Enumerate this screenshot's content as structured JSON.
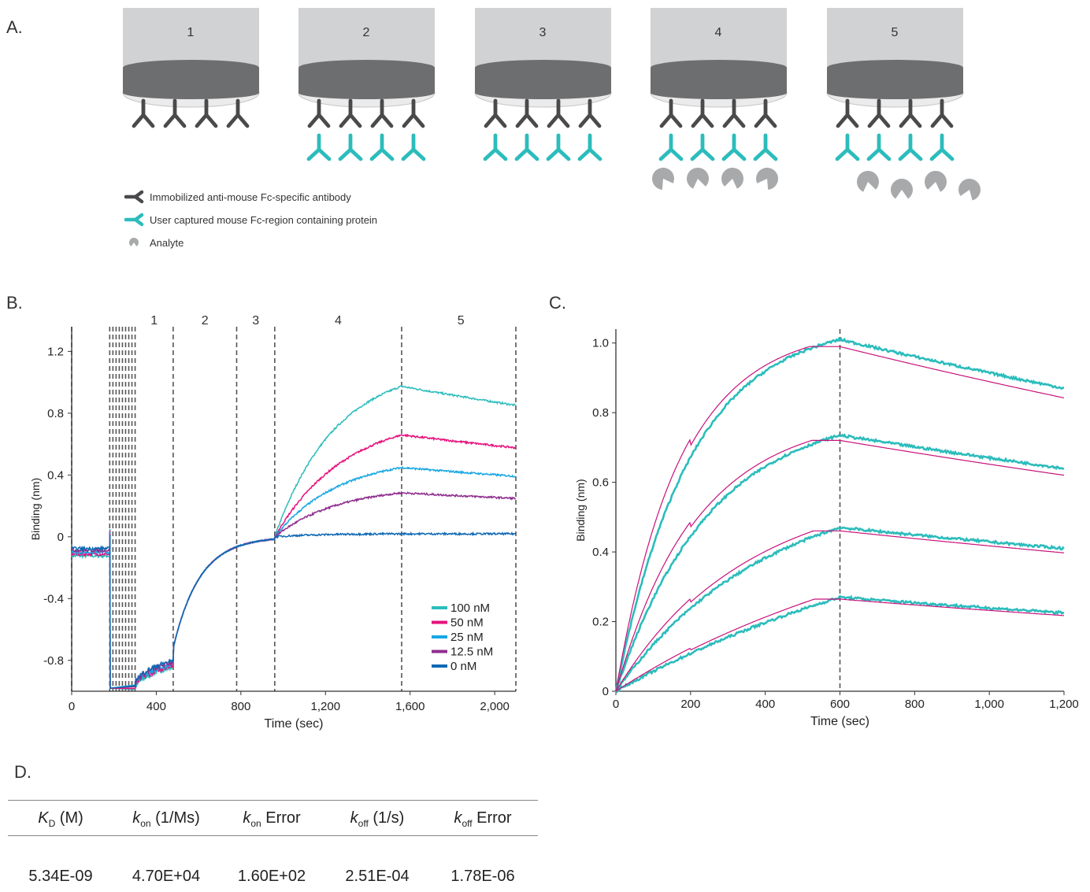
{
  "panel_letters": {
    "a": "A.",
    "b": "B.",
    "c": "C.",
    "d": "D."
  },
  "schematic": {
    "steps": [
      "1",
      "2",
      "3",
      "4",
      "5"
    ],
    "legend": [
      {
        "label": "Immobilized anti-mouse Fc-specific antibody",
        "color": "#4a4a4c"
      },
      {
        "label": "User captured mouse Fc-region containing protein",
        "color": "#2cbcbc"
      },
      {
        "label": "Analyte",
        "color": "#a7a9ab"
      }
    ]
  },
  "chart_data": [
    {
      "type": "line",
      "panel": "B",
      "xlabel": "Time (sec)",
      "ylabel": "Binding (nm)",
      "xlim": [
        0,
        2100
      ],
      "ylim": [
        -1.0,
        1.36
      ],
      "xticks": [
        0,
        400,
        800,
        1200,
        1600,
        2000
      ],
      "xtick_labels": [
        "0",
        "400",
        "800",
        "1,200",
        "1,600",
        "2,000"
      ],
      "yticks": [
        -0.8,
        -0.4,
        0,
        0.4,
        0.8,
        1.2
      ],
      "ytick_labels": [
        "-0.8",
        "-0.4",
        "0",
        "0.4",
        "0.8",
        "1.2"
      ],
      "step_labels": [
        "1",
        "2",
        "3",
        "4",
        "5"
      ],
      "step_label_x": [
        390,
        630,
        870,
        1260,
        1840
      ],
      "step_boundaries": [
        0,
        180,
        195,
        210,
        225,
        240,
        255,
        270,
        285,
        300,
        480,
        780,
        960,
        1560,
        2100
      ],
      "series": [
        {
          "name": "100 nM",
          "color": "#2cbcbc",
          "assoc_plateau": 1.11,
          "assoc_rate": 0.0035,
          "dissoc_rate": 0.00025
        },
        {
          "name": "50 nM",
          "color": "#e6117e",
          "assoc_plateau": 0.79,
          "assoc_rate": 0.003,
          "dissoc_rate": 0.00025
        },
        {
          "name": "25 nM",
          "color": "#18a7e3",
          "assoc_plateau": 0.52,
          "assoc_rate": 0.0033,
          "dissoc_rate": 0.00025
        },
        {
          "name": "12.5 nM",
          "color": "#8f2e8e",
          "assoc_plateau": 0.33,
          "assoc_rate": 0.0033,
          "dissoc_rate": 0.00025
        },
        {
          "name": "0 nM",
          "color": "#0f69b4",
          "assoc_plateau": 0.02,
          "assoc_rate": 0.005,
          "dissoc_rate": 0.0
        }
      ],
      "baseline_step": {
        "x": [
          0,
          180
        ],
        "y": -0.1
      },
      "load_step": {
        "x": [
          300,
          480
        ],
        "y_start": -0.97,
        "y_end": -0.82
      },
      "capture_step": {
        "x": [
          480,
          960
        ],
        "y_start": -0.72,
        "y_end": 0.0,
        "rate": 0.008
      }
    },
    {
      "type": "line",
      "panel": "C",
      "xlabel": "Time (sec)",
      "ylabel": "Binding (nm)",
      "xlim": [
        0,
        1200
      ],
      "ylim": [
        0,
        1.04
      ],
      "xticks": [
        0,
        200,
        400,
        600,
        800,
        1000,
        1200
      ],
      "xtick_labels": [
        "0",
        "200",
        "400",
        "600",
        "800",
        "1,000",
        "1,200"
      ],
      "yticks": [
        0,
        0.2,
        0.4,
        0.6,
        0.8,
        1.0
      ],
      "ytick_labels": [
        "0",
        "0.2",
        "0.4",
        "0.6",
        "0.8",
        "1.0"
      ],
      "boundary_x": 600,
      "series": [
        {
          "y_at_600": 1.01,
          "y_at_1200": 0.87,
          "rate": 0.005
        },
        {
          "y_at_600": 0.735,
          "y_at_1200": 0.64,
          "rate": 0.004
        },
        {
          "y_at_600": 0.47,
          "y_at_1200": 0.41,
          "rate": 0.0025
        },
        {
          "y_at_600": 0.27,
          "y_at_1200": 0.225,
          "rate": 0.001
        }
      ],
      "data_color": "#2cbcbc",
      "fit_color": "#c8117a"
    }
  ],
  "kinetics_table": {
    "headers": [
      {
        "sym": "K",
        "sub": "D",
        "rest": " (M)"
      },
      {
        "sym": "k",
        "sub": "on",
        "rest": " (1/Ms)"
      },
      {
        "sym": "k",
        "sub": "on",
        "rest": " Error"
      },
      {
        "sym": "k",
        "sub": "off",
        "rest": " (1/s)"
      },
      {
        "sym": "k",
        "sub": "off",
        "rest": " Error"
      }
    ],
    "values": [
      "5.34E-09",
      "4.70E+04",
      "1.60E+02",
      "2.51E-04",
      "1.78E-06"
    ]
  }
}
